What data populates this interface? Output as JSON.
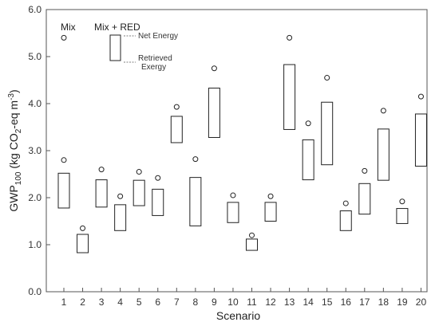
{
  "chart_data": {
    "type": "box-range-with-points",
    "xlabel": "Scenario",
    "ylabel": {
      "main": "GWP",
      "sub1": "100",
      "mid": " (kg CO",
      "sub2": "2",
      "tail": "-eq m",
      "sup": "-3",
      "end": ")"
    },
    "ylim": [
      0,
      6
    ],
    "yticks": [
      "0.0",
      "1.0",
      "2.0",
      "3.0",
      "4.0",
      "5.0",
      "6.0"
    ],
    "categories": [
      "1",
      "2",
      "3",
      "4",
      "5",
      "6",
      "7",
      "8",
      "9",
      "10",
      "11",
      "12",
      "13",
      "14",
      "15",
      "16",
      "17",
      "18",
      "19",
      "20"
    ],
    "mix": [
      5.4,
      2.8,
      1.35,
      2.6,
      2.03,
      2.55,
      2.42,
      3.93,
      2.82,
      4.75,
      2.05,
      1.2,
      2.03,
      5.4,
      3.58,
      4.55,
      1.88,
      2.57,
      3.85,
      1.92,
      4.15
    ],
    "mix_scenarios": [
      1,
      1,
      2,
      3,
      4,
      5,
      6,
      7,
      8,
      9,
      10,
      11,
      12,
      13,
      14,
      15,
      16,
      17,
      18,
      19,
      20
    ],
    "ranges": [
      {
        "low": 1.78,
        "high": 2.52
      },
      {
        "low": 0.83,
        "high": 1.22
      },
      {
        "low": 1.8,
        "high": 2.38
      },
      {
        "low": 1.3,
        "high": 1.85
      },
      {
        "low": 1.83,
        "high": 2.37
      },
      {
        "low": 1.62,
        "high": 2.18
      },
      {
        "low": 3.17,
        "high": 3.73
      },
      {
        "low": 1.4,
        "high": 2.43
      },
      {
        "low": 3.28,
        "high": 4.33
      },
      {
        "low": 1.47,
        "high": 1.9
      },
      {
        "low": 0.88,
        "high": 1.12
      },
      {
        "low": 1.5,
        "high": 1.9
      },
      {
        "low": 3.45,
        "high": 4.83
      },
      {
        "low": 2.38,
        "high": 3.23
      },
      {
        "low": 2.7,
        "high": 4.03
      },
      {
        "low": 1.3,
        "high": 1.72
      },
      {
        "low": 1.65,
        "high": 2.3
      },
      {
        "low": 2.37,
        "high": 3.46
      },
      {
        "low": 1.45,
        "high": 1.77
      },
      {
        "low": 2.67,
        "high": 3.78
      }
    ],
    "legend": {
      "mix": "Mix",
      "mix_red": "Mix + RED",
      "net_energy": "Net Energy",
      "retrieved_line1": "Retrieved",
      "retrieved_line2": "Exergy"
    },
    "grid": false
  }
}
